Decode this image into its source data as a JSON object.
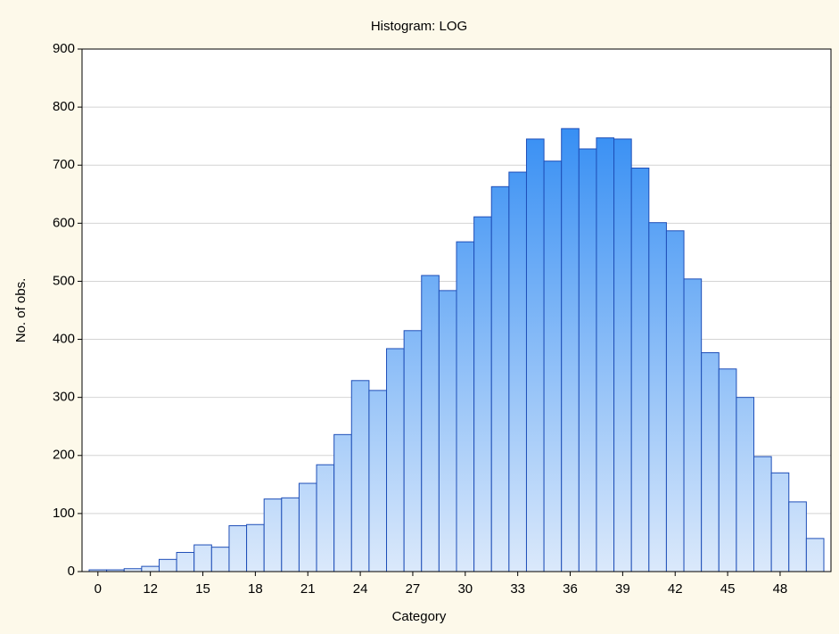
{
  "chart_data": {
    "type": "bar",
    "title": "Histogram: LOG",
    "x_label": "Category",
    "y_label": "No. of obs.",
    "categories": [
      "0",
      null,
      null,
      "12",
      null,
      null,
      "15",
      null,
      null,
      "18",
      null,
      null,
      "21",
      null,
      null,
      "24",
      null,
      null,
      "27",
      null,
      null,
      "30",
      null,
      null,
      "33",
      null,
      null,
      "36",
      null,
      null,
      "39",
      null,
      null,
      "42",
      null,
      null,
      "45",
      null,
      null,
      "48",
      null,
      null
    ],
    "values": [
      3,
      3,
      5,
      9,
      21,
      33,
      46,
      42,
      79,
      81,
      125,
      127,
      152,
      184,
      236,
      329,
      312,
      384,
      415,
      510,
      484,
      568,
      611,
      663,
      688,
      745,
      707,
      763,
      728,
      747,
      745,
      695,
      601,
      587,
      504,
      377,
      349,
      300,
      198,
      170,
      120,
      57
    ],
    "color": "#1a7ff2",
    "edge_color": "#1f4fb8",
    "ylim": [
      0,
      900
    ],
    "yticks": [
      0,
      100,
      200,
      300,
      400,
      500,
      600,
      700,
      800,
      900
    ],
    "grid": true
  }
}
